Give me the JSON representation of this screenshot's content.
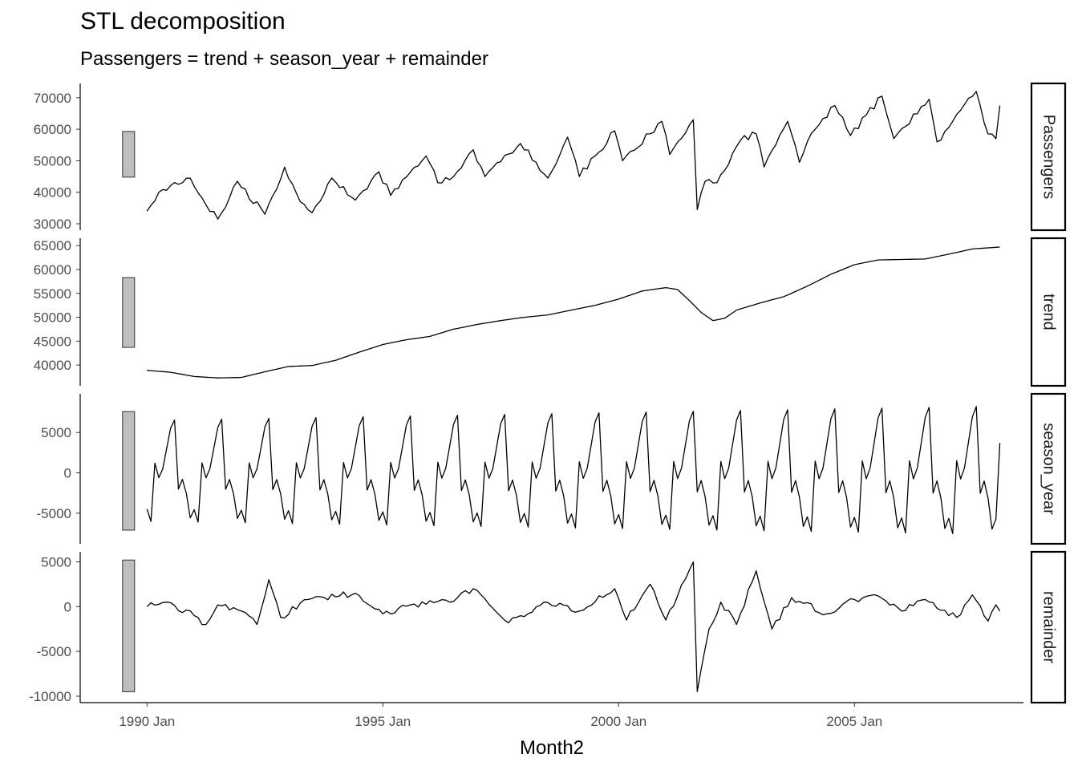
{
  "chart_data": {
    "type": "line",
    "title": "STL decomposition",
    "subtitle": "Passengers = trend + season_year + remainder",
    "xlabel": "Month2",
    "x_ticks": [
      "1990 Jan",
      "1995 Jan",
      "2000 Jan",
      "2005 Jan"
    ],
    "x_tick_dates": [
      "1990-01",
      "1995-01",
      "2000-01",
      "2005-01"
    ],
    "x_start": "1990-01",
    "x_end": "2008-02",
    "x_range": [
      "1988-08",
      "2008-08"
    ],
    "line_color": "#000000",
    "scale_bar_color": "#bebebe",
    "panels": [
      {
        "name": "Passengers",
        "ylim": [
          30000,
          72500
        ],
        "yticks": [
          30000,
          40000,
          50000,
          60000,
          70000
        ],
        "ytick_labels": [
          "30000",
          "40000",
          "50000",
          "60000",
          "70000"
        ],
        "scale_bar": [
          44800,
          59300
        ],
        "anchors": [
          [
            "1990-01",
            34000
          ],
          [
            "1990-04",
            40000
          ],
          [
            "1990-12",
            44500
          ],
          [
            "1991-04",
            36000
          ],
          [
            "1991-07",
            31500
          ],
          [
            "1991-12",
            43500
          ],
          [
            "1992-07",
            33000
          ],
          [
            "1992-12",
            48000
          ],
          [
            "1993-04",
            37000
          ],
          [
            "1993-07",
            33500
          ],
          [
            "1993-12",
            44500
          ],
          [
            "1994-06",
            37500
          ],
          [
            "1994-12",
            46500
          ],
          [
            "1995-03",
            39000
          ],
          [
            "1995-12",
            51500
          ],
          [
            "1996-03",
            43000
          ],
          [
            "1996-07",
            45000
          ],
          [
            "1996-12",
            53500
          ],
          [
            "1997-03",
            45000
          ],
          [
            "1997-12",
            55500
          ],
          [
            "1998-07",
            44500
          ],
          [
            "1998-12",
            57500
          ],
          [
            "1999-03",
            45000
          ],
          [
            "1999-12",
            59500
          ],
          [
            "2000-02",
            50000
          ],
          [
            "2000-12",
            62500
          ],
          [
            "2001-02",
            52000
          ],
          [
            "2001-08",
            63000
          ],
          [
            "2001-09",
            34500
          ],
          [
            "2001-11",
            43500
          ],
          [
            "2002-02",
            43000
          ],
          [
            "2002-08",
            56500
          ],
          [
            "2002-12",
            58500
          ],
          [
            "2003-02",
            48000
          ],
          [
            "2003-08",
            62500
          ],
          [
            "2003-11",
            49500
          ],
          [
            "2004-01",
            56000
          ],
          [
            "2004-08",
            67500
          ],
          [
            "2004-12",
            58000
          ],
          [
            "2005-08",
            70500
          ],
          [
            "2005-11",
            57000
          ],
          [
            "2006-08",
            69500
          ],
          [
            "2006-10",
            56000
          ],
          [
            "2007-08",
            72000
          ],
          [
            "2007-11",
            58500
          ],
          [
            "2008-01",
            57000
          ],
          [
            "2008-02",
            67500
          ]
        ]
      },
      {
        "name": "trend",
        "ylim": [
          37000,
          65200
        ],
        "yticks": [
          40000,
          45000,
          50000,
          55000,
          60000,
          65000
        ],
        "ytick_labels": [
          "40000",
          "45000",
          "50000",
          "55000",
          "60000",
          "65000"
        ],
        "scale_bar": [
          43700,
          58300
        ],
        "anchors": [
          [
            "1990-01",
            38900
          ],
          [
            "1990-07",
            38500
          ],
          [
            "1991-01",
            37600
          ],
          [
            "1991-07",
            37300
          ],
          [
            "1992-01",
            37400
          ],
          [
            "1992-07",
            38600
          ],
          [
            "1993-01",
            39700
          ],
          [
            "1993-07",
            39900
          ],
          [
            "1994-01",
            41000
          ],
          [
            "1994-07",
            42700
          ],
          [
            "1995-01",
            44300
          ],
          [
            "1995-07",
            45300
          ],
          [
            "1996-01",
            46000
          ],
          [
            "1996-07",
            47500
          ],
          [
            "1997-01",
            48500
          ],
          [
            "1997-07",
            49300
          ],
          [
            "1998-01",
            50000
          ],
          [
            "1998-07",
            50500
          ],
          [
            "1999-01",
            51500
          ],
          [
            "1999-07",
            52500
          ],
          [
            "2000-01",
            53800
          ],
          [
            "2000-07",
            55500
          ],
          [
            "2001-01",
            56200
          ],
          [
            "2001-04",
            55800
          ],
          [
            "2001-07",
            53500
          ],
          [
            "2001-10",
            51000
          ],
          [
            "2002-01",
            49300
          ],
          [
            "2002-04",
            49800
          ],
          [
            "2002-07",
            51500
          ],
          [
            "2003-01",
            53000
          ],
          [
            "2003-07",
            54300
          ],
          [
            "2004-01",
            56500
          ],
          [
            "2004-07",
            59000
          ],
          [
            "2005-01",
            61000
          ],
          [
            "2005-07",
            62000
          ],
          [
            "2006-01",
            62100
          ],
          [
            "2006-07",
            62200
          ],
          [
            "2007-01",
            63200
          ],
          [
            "2007-07",
            64300
          ],
          [
            "2008-02",
            64700
          ]
        ]
      },
      {
        "name": "season_year",
        "ylim": [
          -8000,
          9000
        ],
        "yticks": [
          -5000,
          0,
          5000
        ],
        "ytick_labels": [
          "-5000",
          "0",
          "5000"
        ],
        "scale_bar": [
          -7100,
          7600
        ],
        "cycle_start": "1990-01",
        "season_pattern": [
          -4500,
          -6000,
          1200,
          -600,
          500,
          3000,
          5500,
          6500,
          -2000,
          -800,
          -2500,
          -5500
        ],
        "amplitude_growth_per_year": 0.015,
        "last_value": 3700
      },
      {
        "name": "remainder",
        "ylim": [
          -10000,
          5400
        ],
        "yticks": [
          -10000,
          -5000,
          0,
          5000
        ],
        "ytick_labels": [
          "-10000",
          "-5000",
          "0",
          "5000"
        ],
        "scale_bar": [
          -9500,
          5200
        ],
        "anchors": [
          [
            "1990-01",
            0
          ],
          [
            "1990-06",
            500
          ],
          [
            "1991-01",
            -1000
          ],
          [
            "1991-04",
            -2000
          ],
          [
            "1991-07",
            200
          ],
          [
            "1992-01",
            -500
          ],
          [
            "1992-05",
            -2000
          ],
          [
            "1992-08",
            3000
          ],
          [
            "1992-11",
            -1200
          ],
          [
            "1993-06",
            800
          ],
          [
            "1994-06",
            1500
          ],
          [
            "1995-01",
            -800
          ],
          [
            "1995-08",
            200
          ],
          [
            "1996-06",
            500
          ],
          [
            "1996-12",
            2000
          ],
          [
            "1997-09",
            -1800
          ],
          [
            "1998-06",
            500
          ],
          [
            "1999-03",
            -500
          ],
          [
            "1999-12",
            2000
          ],
          [
            "2000-03",
            -1500
          ],
          [
            "2000-09",
            2500
          ],
          [
            "2001-01",
            -1500
          ],
          [
            "2001-04",
            1200
          ],
          [
            "2001-08",
            5000
          ],
          [
            "2001-09",
            -9500
          ],
          [
            "2001-12",
            -2500
          ],
          [
            "2002-03",
            500
          ],
          [
            "2002-07",
            -2000
          ],
          [
            "2002-12",
            4000
          ],
          [
            "2003-04",
            -2500
          ],
          [
            "2003-09",
            1000
          ],
          [
            "2004-06",
            -800
          ],
          [
            "2005-01",
            800
          ],
          [
            "2005-07",
            1200
          ],
          [
            "2006-01",
            -500
          ],
          [
            "2006-07",
            800
          ],
          [
            "2007-03",
            -1200
          ],
          [
            "2007-07",
            1300
          ],
          [
            "2007-11",
            -1600
          ],
          [
            "2008-01",
            200
          ],
          [
            "2008-02",
            -500
          ]
        ]
      }
    ]
  }
}
